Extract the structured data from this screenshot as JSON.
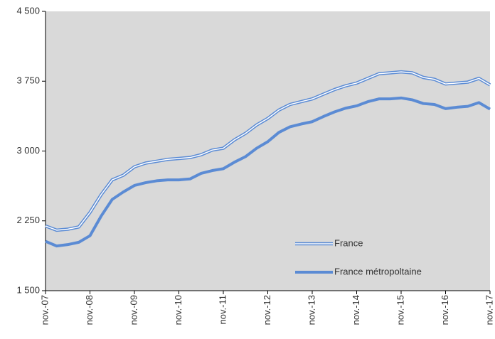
{
  "chart_data": {
    "type": "line",
    "categories": [
      "nov.-07",
      null,
      null,
      null,
      "nov.-08",
      null,
      null,
      null,
      "nov.-09",
      null,
      null,
      null,
      "nov.-10",
      null,
      null,
      null,
      "nov.-11",
      null,
      null,
      null,
      "nov.-12",
      null,
      null,
      null,
      "nov.-13",
      null,
      null,
      null,
      "nov.-14",
      null,
      null,
      null,
      "nov.-15",
      null,
      null,
      null,
      "nov.-16",
      null,
      null,
      null,
      "nov.-17"
    ],
    "series": [
      {
        "name": "France",
        "color": "#5b8bd4",
        "style": "double",
        "values": [
          2195,
          2150,
          2160,
          2185,
          2340,
          2530,
          2690,
          2740,
          2830,
          2870,
          2890,
          2910,
          2920,
          2930,
          2960,
          3010,
          3030,
          3120,
          3190,
          3280,
          3350,
          3440,
          3500,
          3530,
          3560,
          3610,
          3660,
          3700,
          3730,
          3780,
          3830,
          3840,
          3850,
          3840,
          3790,
          3770,
          3720,
          3730,
          3740,
          3780,
          3710
        ]
      },
      {
        "name": "France métropoltaine",
        "color": "#5b8bd4",
        "style": "solid",
        "values": [
          2030,
          1980,
          1995,
          2020,
          2090,
          2300,
          2480,
          2560,
          2630,
          2660,
          2680,
          2690,
          2690,
          2700,
          2760,
          2790,
          2810,
          2880,
          2940,
          3030,
          3100,
          3200,
          3260,
          3290,
          3315,
          3370,
          3420,
          3460,
          3485,
          3530,
          3560,
          3560,
          3570,
          3550,
          3510,
          3500,
          3455,
          3470,
          3480,
          3520,
          3450
        ]
      }
    ],
    "ylim": [
      1500,
      4500
    ],
    "yticks": [
      {
        "value": 1500,
        "label": "1 500"
      },
      {
        "value": 2250,
        "label": "2 250"
      },
      {
        "value": 3000,
        "label": "3 000"
      },
      {
        "value": 3750,
        "label": "3 750"
      },
      {
        "value": 4500,
        "label": "4 500"
      }
    ],
    "legend": "lower right"
  }
}
